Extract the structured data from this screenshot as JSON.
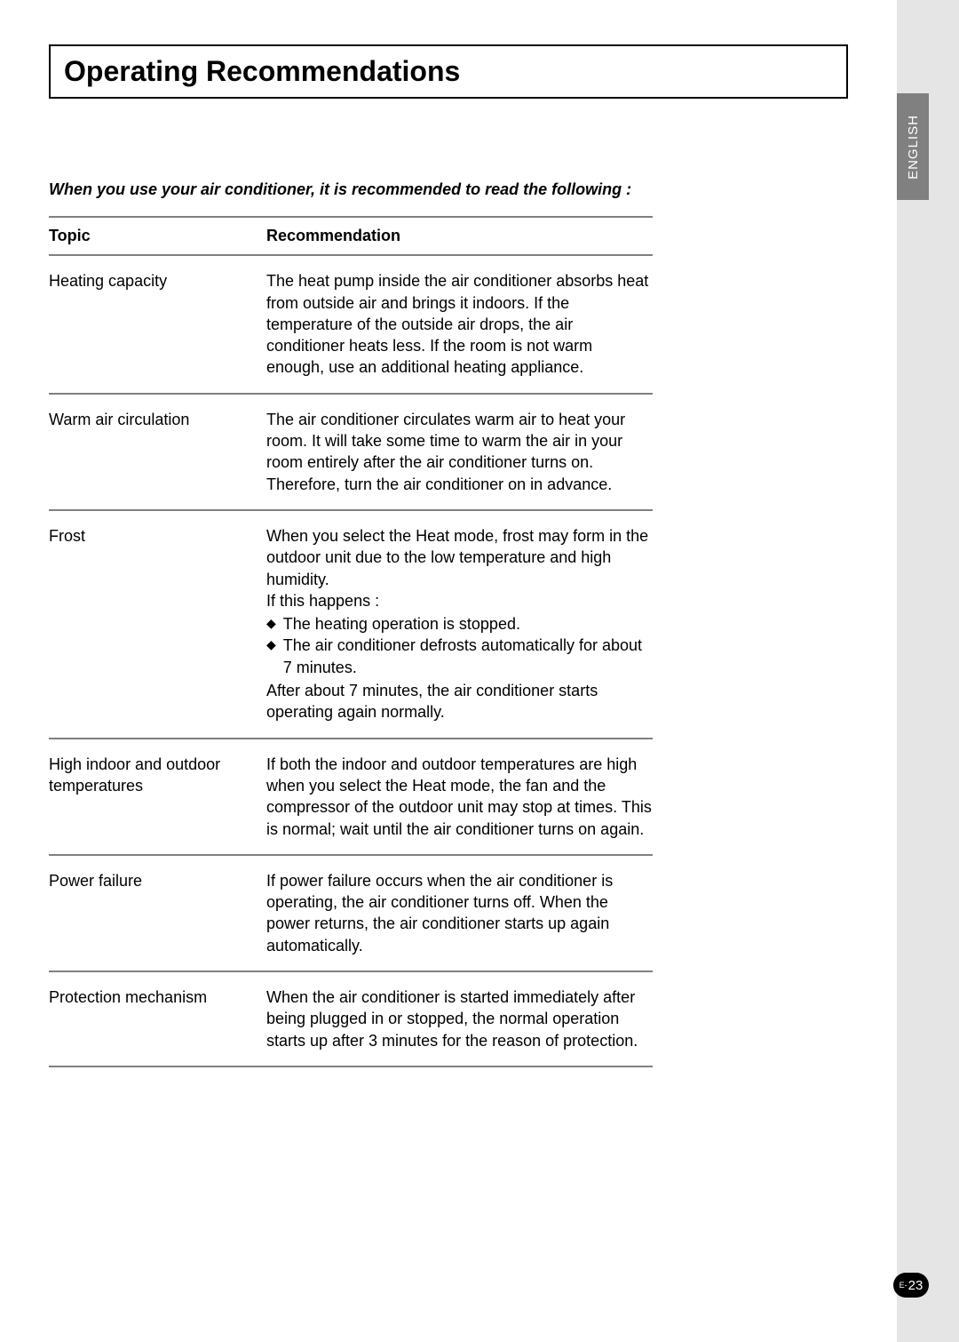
{
  "title": "Operating Recommendations",
  "intro": "When you use your air conditioner, it is recommended to read the following :",
  "sideTab": "ENGLISH",
  "pageNumber": {
    "prefix": "E-",
    "value": "23"
  },
  "table": {
    "header": {
      "topic": "Topic",
      "recommendation": "Recommendation"
    },
    "rows": [
      {
        "topic": "Heating capacity",
        "recommendation": "The heat pump inside the air conditioner absorbs heat from outside air and brings it indoors. If the temperature of the outside air drops, the air conditioner heats less. If the room is not warm enough, use an additional heating appliance."
      },
      {
        "topic": "Warm air circulation",
        "recommendation": "The air conditioner circulates warm air to heat your room. It will take some time to warm the air in your room entirely after the air conditioner turns on. Therefore, turn the air conditioner on in advance."
      },
      {
        "topic": "Frost",
        "recommendationPre": "When you select the Heat mode, frost may form in the outdoor unit due to the low temperature and high humidity.\nIf this happens :",
        "bullets": [
          "The heating operation is stopped.",
          "The air conditioner defrosts automatically for about 7 minutes."
        ],
        "recommendationPost": "After about 7 minutes, the air conditioner starts operating again normally."
      },
      {
        "topic": "High indoor and outdoor temperatures",
        "recommendation": "If both the indoor and outdoor temperatures are high when you select the Heat mode, the fan and the compressor of the outdoor unit may stop at times. This is normal; wait until the air conditioner turns on again."
      },
      {
        "topic": "Power failure",
        "recommendation": "If power failure occurs when the air conditioner is operating, the air conditioner turns off. When the power returns, the air conditioner starts up again automatically."
      },
      {
        "topic": "Protection mechanism",
        "recommendation": "When the air conditioner is started immediately after being plugged in or stopped, the normal operation starts up after 3 minutes for the reason of protection."
      }
    ]
  }
}
